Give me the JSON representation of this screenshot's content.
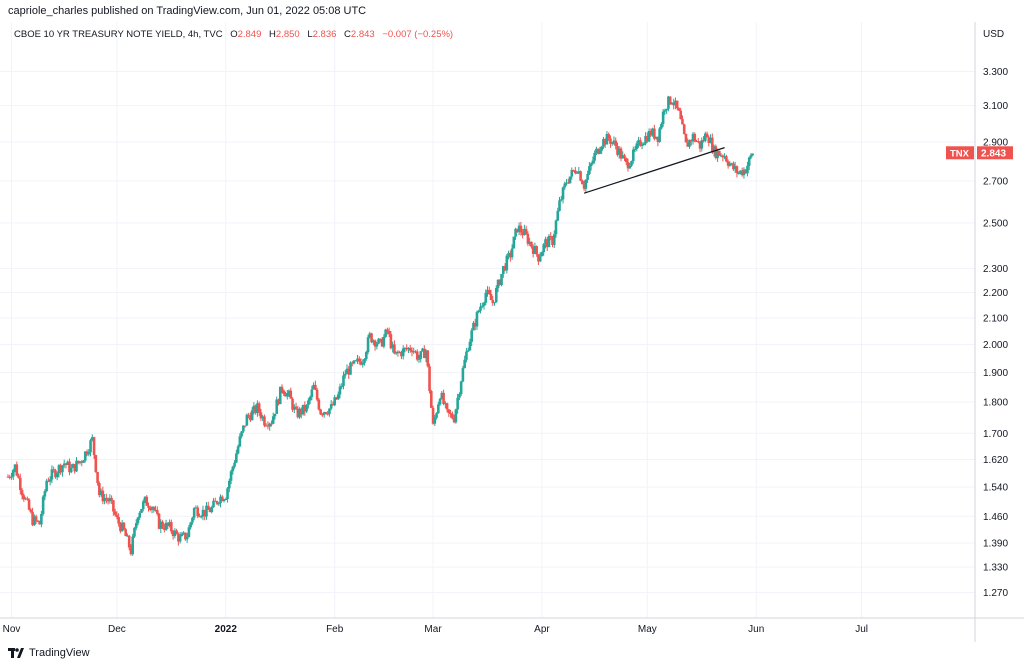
{
  "header": {
    "attribution": "capriole_charles published on TradingView.com, Jun 01, 2022 05:08 UTC"
  },
  "legend": {
    "symbol": "CBOE 10 YR TREASURY NOTE YIELD, 4h, TVC",
    "open_label": "O",
    "open": "2.849",
    "high_label": "H",
    "high": "2.850",
    "low_label": "L",
    "low": "2.836",
    "close_label": "C",
    "close": "2.843",
    "change": "−0.007 (−0.25%)"
  },
  "price_scale": {
    "currency": "USD"
  },
  "last_price_tag": {
    "ticker": "TNX",
    "price": "2.843"
  },
  "footer": {
    "brand": "TradingView"
  },
  "colors": {
    "up": "#26a69a",
    "down": "#ef5350",
    "grid": "#f0f3fa",
    "axis": "#d1d4dc",
    "trendline": "#131722"
  },
  "chart_data": {
    "type": "candlestick",
    "title": "CBOE 10 YR TREASURY NOTE YIELD, 4h, TVC",
    "y_scale": "log",
    "y_unit": "USD",
    "y_ticks": [
      1.27,
      1.33,
      1.39,
      1.46,
      1.54,
      1.62,
      1.7,
      1.8,
      1.9,
      2.0,
      2.1,
      2.2,
      2.3,
      2.5,
      2.7,
      2.9,
      3.1,
      3.3
    ],
    "y_tick_labels": [
      "1.270",
      "1.330",
      "1.390",
      "1.460",
      "1.540",
      "1.620",
      "1.700",
      "1.800",
      "1.900",
      "2.000",
      "2.100",
      "2.200",
      "2.300",
      "2.500",
      "2.700",
      "2.900",
      "3.100",
      "3.300"
    ],
    "x_ticks": [
      {
        "date": "2021-11-01",
        "label": "Nov"
      },
      {
        "date": "2021-12-01",
        "label": "Dec"
      },
      {
        "date": "2022-01-01",
        "label": "2022"
      },
      {
        "date": "2022-02-01",
        "label": "Feb"
      },
      {
        "date": "2022-03-01",
        "label": "Mar"
      },
      {
        "date": "2022-04-01",
        "label": "Apr"
      },
      {
        "date": "2022-05-01",
        "label": "May"
      },
      {
        "date": "2022-06-01",
        "label": "Jun"
      },
      {
        "date": "2022-07-01",
        "label": "Jul"
      }
    ],
    "x_range": [
      "2021-10-31",
      "2022-07-31"
    ],
    "price_path": [
      [
        "2021-10-31",
        1.57
      ],
      [
        "2021-11-02",
        1.6
      ],
      [
        "2021-11-04",
        1.53
      ],
      [
        "2021-11-07",
        1.45
      ],
      [
        "2021-11-09",
        1.44
      ],
      [
        "2021-11-11",
        1.56
      ],
      [
        "2021-11-13",
        1.58
      ],
      [
        "2021-11-16",
        1.61
      ],
      [
        "2021-11-18",
        1.59
      ],
      [
        "2021-11-21",
        1.62
      ],
      [
        "2021-11-24",
        1.68
      ],
      [
        "2021-11-26",
        1.52
      ],
      [
        "2021-11-29",
        1.5
      ],
      [
        "2021-12-01",
        1.45
      ],
      [
        "2021-12-03",
        1.42
      ],
      [
        "2021-12-05",
        1.37
      ],
      [
        "2021-12-07",
        1.47
      ],
      [
        "2021-12-09",
        1.5
      ],
      [
        "2021-12-11",
        1.49
      ],
      [
        "2021-12-13",
        1.44
      ],
      [
        "2021-12-16",
        1.43
      ],
      [
        "2021-12-19",
        1.4
      ],
      [
        "2021-12-21",
        1.41
      ],
      [
        "2021-12-23",
        1.48
      ],
      [
        "2021-12-26",
        1.47
      ],
      [
        "2021-12-28",
        1.48
      ],
      [
        "2021-12-30",
        1.51
      ],
      [
        "2022-01-01",
        1.52
      ],
      [
        "2022-01-03",
        1.6
      ],
      [
        "2022-01-05",
        1.68
      ],
      [
        "2022-01-07",
        1.75
      ],
      [
        "2022-01-10",
        1.78
      ],
      [
        "2022-01-12",
        1.74
      ],
      [
        "2022-01-14",
        1.74
      ],
      [
        "2022-01-17",
        1.85
      ],
      [
        "2022-01-19",
        1.82
      ],
      [
        "2022-01-21",
        1.76
      ],
      [
        "2022-01-24",
        1.78
      ],
      [
        "2022-01-26",
        1.85
      ],
      [
        "2022-01-28",
        1.77
      ],
      [
        "2022-01-31",
        1.78
      ],
      [
        "2022-02-02",
        1.82
      ],
      [
        "2022-02-04",
        1.9
      ],
      [
        "2022-02-07",
        1.93
      ],
      [
        "2022-02-09",
        1.95
      ],
      [
        "2022-02-11",
        2.03
      ],
      [
        "2022-02-14",
        2.0
      ],
      [
        "2022-02-16",
        2.05
      ],
      [
        "2022-02-18",
        1.96
      ],
      [
        "2022-02-21",
        1.98
      ],
      [
        "2022-02-23",
        1.99
      ],
      [
        "2022-02-25",
        1.95
      ],
      [
        "2022-02-27",
        1.98
      ],
      [
        "2022-03-01",
        1.72
      ],
      [
        "2022-03-03",
        1.83
      ],
      [
        "2022-03-05",
        1.76
      ],
      [
        "2022-03-07",
        1.75
      ],
      [
        "2022-03-09",
        1.88
      ],
      [
        "2022-03-11",
        2.0
      ],
      [
        "2022-03-14",
        2.13
      ],
      [
        "2022-03-16",
        2.2
      ],
      [
        "2022-03-18",
        2.16
      ],
      [
        "2022-03-21",
        2.3
      ],
      [
        "2022-03-23",
        2.36
      ],
      [
        "2022-03-25",
        2.48
      ],
      [
        "2022-03-27",
        2.45
      ],
      [
        "2022-03-29",
        2.4
      ],
      [
        "2022-03-31",
        2.35
      ],
      [
        "2022-04-02",
        2.41
      ],
      [
        "2022-04-04",
        2.42
      ],
      [
        "2022-04-06",
        2.59
      ],
      [
        "2022-04-08",
        2.7
      ],
      [
        "2022-04-11",
        2.77
      ],
      [
        "2022-04-13",
        2.68
      ],
      [
        "2022-04-16",
        2.83
      ],
      [
        "2022-04-18",
        2.9
      ],
      [
        "2022-04-20",
        2.92
      ],
      [
        "2022-04-22",
        2.88
      ],
      [
        "2022-04-25",
        2.78
      ],
      [
        "2022-04-27",
        2.83
      ],
      [
        "2022-04-29",
        2.9
      ],
      [
        "2022-05-02",
        2.95
      ],
      [
        "2022-05-04",
        2.93
      ],
      [
        "2022-05-06",
        3.1
      ],
      [
        "2022-05-08",
        3.14
      ],
      [
        "2022-05-10",
        3.05
      ],
      [
        "2022-05-12",
        2.88
      ],
      [
        "2022-05-14",
        2.93
      ],
      [
        "2022-05-16",
        2.88
      ],
      [
        "2022-05-18",
        2.95
      ],
      [
        "2022-05-20",
        2.85
      ],
      [
        "2022-05-23",
        2.83
      ],
      [
        "2022-05-25",
        2.77
      ],
      [
        "2022-05-27",
        2.74
      ],
      [
        "2022-05-29",
        2.76
      ],
      [
        "2022-05-31",
        2.843
      ]
    ],
    "trendline": {
      "start": [
        "2022-04-13",
        2.64
      ],
      "end": [
        "2022-05-23",
        2.87
      ]
    }
  }
}
